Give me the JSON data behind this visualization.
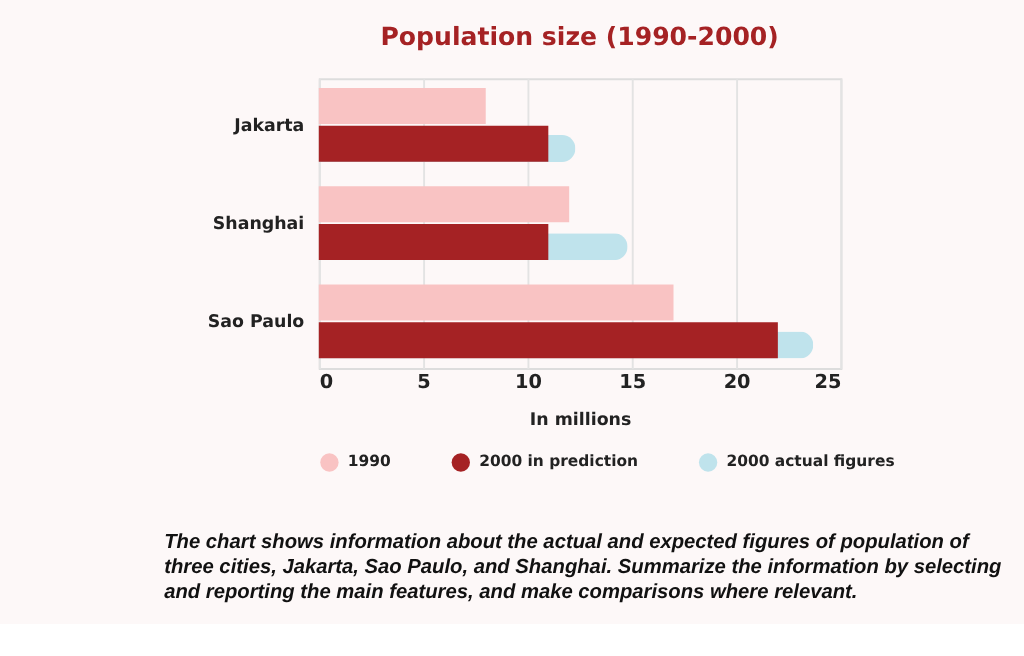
{
  "chart_data": {
    "type": "bar",
    "orientation": "horizontal",
    "title": "Population size (1990-2000)",
    "xlabel": "In millions",
    "categories": [
      "Jakarta",
      "Shanghai",
      "Sao Paulo"
    ],
    "series": [
      {
        "name": "1990",
        "color": "#f9c3c3",
        "values": [
          8,
          12,
          17
        ]
      },
      {
        "name": "2000 in prediction",
        "color": "#a52224",
        "values": [
          11,
          11,
          22
        ]
      },
      {
        "name": "2000 actual figures",
        "color": "#bfe3ec",
        "values": [
          12.3,
          14.8,
          23.7
        ]
      }
    ],
    "xlim": [
      0,
      25
    ],
    "xticks": [
      0,
      5,
      10,
      15,
      20,
      25
    ],
    "grid": "x",
    "legend": "bottom",
    "annotations": [
      "The chart shows information about the actual and expected figures of population of three cities, Jakarta, Sao Paulo, and Shanghai. Summarize the information by selecting and reporting the main features, and make comparisons where relevant."
    ]
  }
}
